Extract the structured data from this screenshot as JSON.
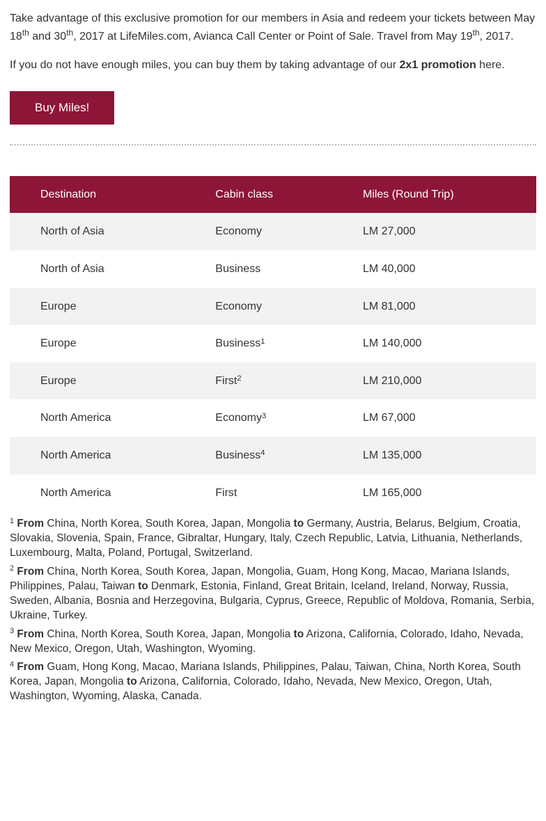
{
  "colors": {
    "brand": "#8d1538",
    "text": "#333333",
    "row_odd_bg": "#f2f2f2",
    "row_even_bg": "#ffffff",
    "divider": "#bbbbbb"
  },
  "intro": {
    "line1_pre": "Take advantage of this exclusive promotion for our members in Asia and redeem your tickets between May 18",
    "line1_sup1": "th",
    "line1_mid": " and 30",
    "line1_sup2": "th",
    "line1_mid2": ", 2017 at LifeMiles.com, Avianca Call Center or Point of Sale. Travel from May 19",
    "line1_sup3": "th",
    "line1_end": ", 2017."
  },
  "promo": {
    "pre": "If you do not have enough miles, you can buy them by taking advantage of our ",
    "bold": "2x1 promotion",
    "post": " here."
  },
  "button_label": "Buy Miles!",
  "table": {
    "headers": [
      "Destination",
      "Cabin class",
      "Miles (Round Trip)"
    ],
    "rows": [
      {
        "dest": "North of Asia",
        "cabin": "Economy",
        "sup": "",
        "miles": "LM 27,000"
      },
      {
        "dest": "North of Asia",
        "cabin": "Business",
        "sup": "",
        "miles": "LM 40,000"
      },
      {
        "dest": "Europe",
        "cabin": "Economy",
        "sup": "",
        "miles": "LM 81,000"
      },
      {
        "dest": "Europe",
        "cabin": "Business",
        "sup": "1",
        "miles": "LM 140,000"
      },
      {
        "dest": "Europe",
        "cabin": "First",
        "sup": "2",
        "miles": "LM 210,000"
      },
      {
        "dest": "North America",
        "cabin": "Economy",
        "sup": "3",
        "miles": "LM 67,000"
      },
      {
        "dest": "North America",
        "cabin": "Business",
        "sup": "4",
        "miles": "LM 135,000"
      },
      {
        "dest": "North America",
        "cabin": "First",
        "sup": "",
        "miles": "LM 165,000"
      }
    ]
  },
  "footnotes": [
    {
      "num": "1",
      "from_label": "From",
      "from": " China, North Korea, South Korea, Japan, Mongolia ",
      "to_label": "to",
      "to": " Germany, Austria, Belarus, Belgium, Croatia, Slovakia, Slovenia, Spain, France, Gibraltar, Hungary, Italy, Czech Republic, Latvia, Lithuania, Netherlands, Luxembourg, Malta, Poland, Portugal, Switzerland."
    },
    {
      "num": "2",
      "from_label": "From",
      "from": " China, North Korea, South Korea, Japan, Mongolia, Guam, Hong Kong, Macao, Mariana Islands, Philippines, Palau, Taiwan ",
      "to_label": "to",
      "to": " Denmark, Estonia, Finland, Great Britain, Iceland, Ireland, Norway, Russia, Sweden, Albania, Bosnia and Herzegovina, Bulgaria, Cyprus, Greece, Republic of Moldova, Romania, Serbia, Ukraine, Turkey."
    },
    {
      "num": "3",
      "from_label": "From",
      "from": " China, North Korea, South Korea, Japan, Mongolia ",
      "to_label": "to",
      "to": " Arizona, California, Colorado, Idaho, Nevada, New Mexico, Oregon, Utah, Washington, Wyoming."
    },
    {
      "num": "4",
      "from_label": "From",
      "from": " Guam, Hong Kong, Macao, Mariana Islands, Philippines, Palau, Taiwan, China, North Korea, South Korea, Japan, Mongolia ",
      "to_label": "to",
      "to": " Arizona, California, Colorado, Idaho, Nevada, New Mexico, Oregon, Utah, Washington, Wyoming, Alaska, Canada."
    }
  ]
}
